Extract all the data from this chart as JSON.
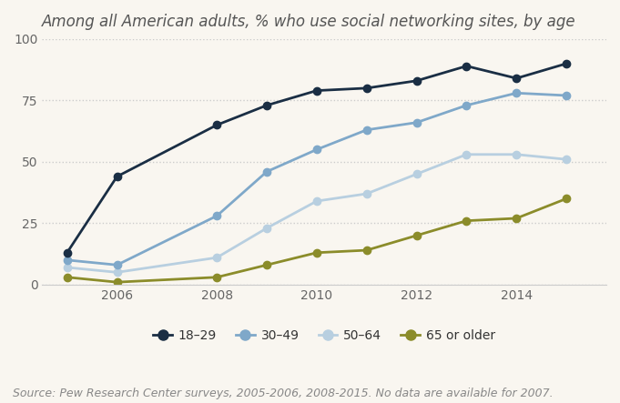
{
  "title": "Among all American adults, % who use social networking sites, by age",
  "source": "Source: Pew Research Center surveys, 2005-2006, 2008-2015. No data are available for 2007.",
  "years": [
    2005,
    2006,
    2008,
    2009,
    2010,
    2011,
    2012,
    2013,
    2014,
    2015
  ],
  "series": {
    "18-29": {
      "values": [
        13,
        44,
        65,
        73,
        79,
        80,
        83,
        89,
        84,
        90
      ],
      "color": "#1a2e44",
      "label": "18–29"
    },
    "30-49": {
      "values": [
        10,
        8,
        28,
        46,
        55,
        63,
        66,
        73,
        78,
        77
      ],
      "color": "#7fa8c9",
      "label": "30–49"
    },
    "50-64": {
      "values": [
        7,
        5,
        11,
        23,
        34,
        37,
        45,
        53,
        53,
        51
      ],
      "color": "#b8cfe0",
      "label": "50–64"
    },
    "65+": {
      "values": [
        3,
        1,
        3,
        8,
        13,
        14,
        20,
        26,
        27,
        35
      ],
      "color": "#8b8c2a",
      "label": "65 or older"
    }
  },
  "ylim": [
    0,
    100
  ],
  "yticks": [
    0,
    25,
    50,
    75,
    100
  ],
  "xticks": [
    2006,
    2008,
    2010,
    2012,
    2014
  ],
  "background_color": "#f9f6f0",
  "grid_color": "#cccccc",
  "title_fontsize": 12,
  "source_fontsize": 9,
  "legend_fontsize": 10,
  "tick_fontsize": 10
}
